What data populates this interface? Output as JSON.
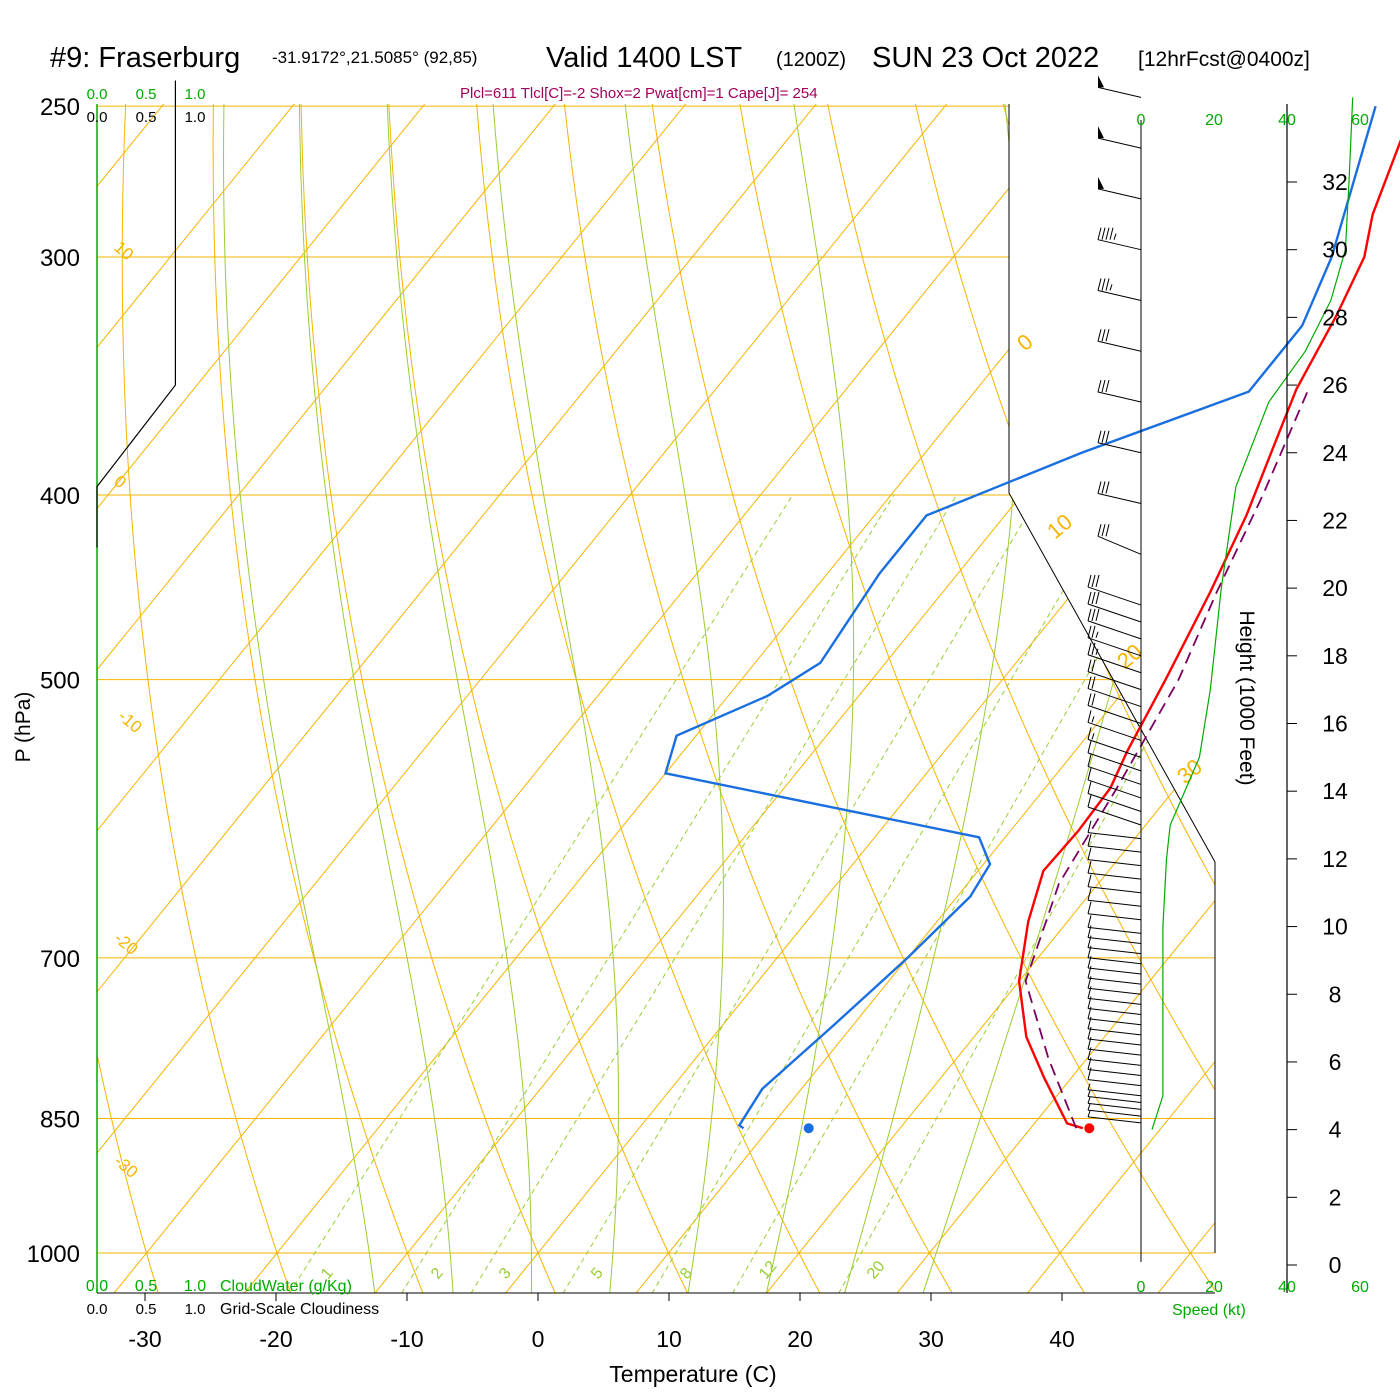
{
  "header": {
    "station": "#9: Fraserburg",
    "coords": "-31.9172°,21.5085° (92,85)",
    "valid": "Valid 1400 LST",
    "zulu": "(1200Z)",
    "date": "SUN 23 Oct 2022",
    "forecast": "[12hrFcst@0400z]",
    "indices": "Plcl=611 Tlcl[C]=-2 Shox=2 Pwat[cm]=1 Cape[J]= 254"
  },
  "colors": {
    "isotherm": "#f5b400",
    "dry_adiabat": "#f5b400",
    "moist_adiabat": "#9acd32",
    "mixing_ratio": "#9acd32",
    "temperature": "#ff0000",
    "dewpoint": "#1a6fe0",
    "parcel": "#7b0060",
    "indices_text": "#a0005a",
    "green_text": "#00aa00",
    "wind": "#000000"
  },
  "chart_data": {
    "type": "line",
    "subtype": "skew-T log-P sounding",
    "xlabel": "Temperature (C)",
    "ylabel": "P (hPa)",
    "right_label": "Height (1000 Feet)",
    "x_ticks": [
      -30,
      -20,
      -10,
      0,
      10,
      20,
      30,
      40
    ],
    "p_ticks": [
      250,
      300,
      400,
      500,
      700,
      850,
      1000
    ],
    "height_ticks": [
      0,
      2,
      4,
      6,
      8,
      10,
      12,
      14,
      16,
      18,
      20,
      22,
      24,
      26,
      28,
      30,
      32
    ],
    "dry_adiabat_labels": [
      "10",
      "0",
      "-10",
      "-20",
      "-30"
    ],
    "right_adiabat_labels": [
      "0",
      "10",
      "20",
      "30"
    ],
    "mixing_ratio_labels": [
      "1",
      "2",
      "3",
      "5",
      "8",
      "12",
      "20"
    ],
    "series": [
      {
        "key": "temperature",
        "points": [
          [
            34.0,
            860
          ],
          [
            32.5,
            855
          ],
          [
            28,
            810
          ],
          [
            24,
            770
          ],
          [
            20,
            720
          ],
          [
            17.0,
            670
          ],
          [
            15.0,
            630
          ],
          [
            15.2,
            600
          ],
          [
            15.0,
            570
          ],
          [
            14,
            545
          ],
          [
            12.5,
            500
          ],
          [
            10.5,
            450
          ],
          [
            8.5,
            410
          ],
          [
            6.5,
            380
          ],
          [
            4.5,
            352
          ],
          [
            3,
            322
          ],
          [
            1.5,
            300
          ],
          [
            -0.5,
            285
          ],
          [
            -3,
            260
          ]
        ]
      },
      {
        "key": "dewpoint",
        "points": [
          [
            8,
            860
          ],
          [
            7.5,
            857
          ],
          [
            7,
            820
          ],
          [
            8.5,
            760
          ],
          [
            10,
            700
          ],
          [
            11,
            650
          ],
          [
            10.5,
            625
          ],
          [
            8,
            605
          ],
          [
            -20,
            560
          ],
          [
            -21.5,
            535
          ],
          [
            -17,
            510
          ],
          [
            -15,
            490
          ],
          [
            -16,
            440
          ],
          [
            -16,
            410
          ],
          [
            -8,
            380
          ],
          [
            1,
            353
          ],
          [
            1,
            326
          ],
          [
            -1,
            300
          ],
          [
            -7,
            250
          ]
        ]
      },
      {
        "key": "parcel",
        "dashed": true,
        "points": [
          [
            33.5,
            860
          ],
          [
            27,
            790
          ],
          [
            20.5,
            720
          ],
          [
            17.0,
            640
          ],
          [
            15.5,
            570
          ],
          [
            13.5,
            500
          ],
          [
            11,
            450
          ],
          [
            8.5,
            400
          ],
          [
            5.5,
            353
          ]
        ]
      }
    ],
    "surface_markers": {
      "temperature": 34.5,
      "dewpoint": 13.0,
      "pressure": 860
    },
    "winds": {
      "speed_axis_label": "Speed (kt)",
      "speed_ticks": [
        0,
        20,
        40,
        60
      ],
      "heights_kft": [
        4.2,
        4.4,
        4.6,
        4.8,
        5.0,
        5.3,
        5.6,
        5.9,
        6.2,
        6.5,
        6.8,
        7.1,
        7.4,
        7.7,
        8.0,
        8.3,
        8.6,
        8.9,
        9.2,
        9.5,
        9.8,
        10.2,
        10.6,
        11.0,
        11.4,
        11.8,
        12.2,
        12.6,
        13.0,
        13.4,
        13.8,
        14.2,
        14.6,
        15.0,
        15.5,
        16.0,
        16.5,
        17.0,
        17.5,
        18.0,
        18.5,
        19.0,
        19.5,
        21.0,
        22.5,
        24.0,
        25.5,
        27.0,
        28.5,
        30.0,
        31.5,
        33.0,
        34.5
      ],
      "speeds_kt": [
        8,
        8,
        8,
        9,
        9,
        10,
        10,
        11,
        11,
        12,
        12,
        12,
        12,
        12,
        12,
        12,
        12,
        12,
        12,
        12,
        12,
        12,
        12,
        12,
        12,
        12,
        12,
        12,
        12,
        12,
        12,
        12,
        14,
        16,
        18,
        20,
        22,
        24,
        26,
        28,
        30,
        30,
        30,
        30,
        30,
        30,
        30,
        30,
        35,
        45,
        50,
        50,
        50
      ],
      "speed_profile": [
        [
          4.0,
          3
        ],
        [
          5.0,
          6
        ],
        [
          6.0,
          6
        ],
        [
          8.0,
          6
        ],
        [
          10.0,
          6
        ],
        [
          12.0,
          7
        ],
        [
          13.0,
          8
        ],
        [
          14.0,
          12
        ],
        [
          15.0,
          16
        ],
        [
          17.0,
          19
        ],
        [
          20.0,
          22
        ],
        [
          23.0,
          26
        ],
        [
          25.5,
          35
        ],
        [
          27.0,
          45
        ],
        [
          28.5,
          52
        ],
        [
          30.0,
          56
        ],
        [
          32.0,
          57
        ],
        [
          34.5,
          58
        ]
      ]
    },
    "cloud_axes": {
      "cloudwater_label": "CloudWater (g/Kg)",
      "cloudiness_label": "Grid-Scale Cloudiness",
      "ticks": [
        "0.0",
        "0.5",
        "1.0"
      ],
      "cloudiness_profile": [
        [
          0.0,
          21.2
        ],
        [
          0.0,
          23.0
        ],
        [
          0.8,
          26.0
        ],
        [
          0.8,
          35.0
        ]
      ]
    }
  }
}
